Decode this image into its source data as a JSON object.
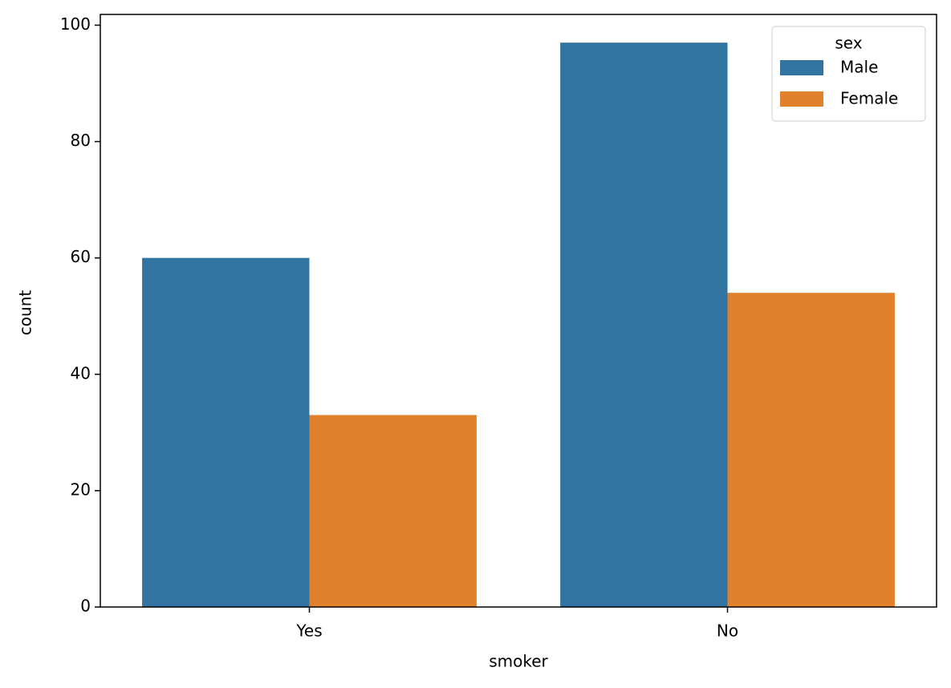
{
  "chart_data": {
    "type": "bar",
    "x_label": "smoker",
    "y_label": "count",
    "categories": [
      "Yes",
      "No"
    ],
    "series": [
      {
        "name": "Male",
        "color": "#3274a1",
        "values": [
          60,
          97
        ]
      },
      {
        "name": "Female",
        "color": "#e1812c",
        "values": [
          33,
          54
        ]
      }
    ],
    "ylim": [
      0,
      101.85
    ],
    "yticks": [
      0,
      20,
      40,
      60,
      80,
      100
    ],
    "legend_title": "sex",
    "legend_position": "upper right"
  }
}
